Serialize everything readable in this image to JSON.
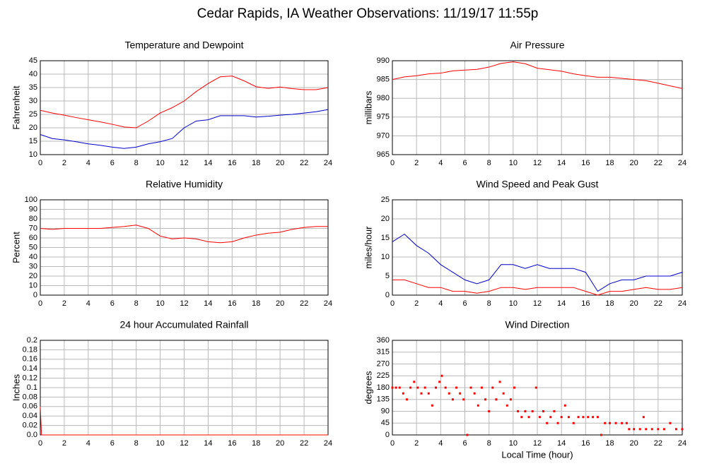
{
  "title": "Cedar Rapids, IA Weather Observations: 11/19/17 11:55p",
  "chart_data": [
    {
      "type": "line",
      "title": "Temperature and Dewpoint",
      "y_label": "Fahrenheit",
      "x": [
        0,
        1,
        2,
        3,
        4,
        5,
        6,
        7,
        8,
        9,
        10,
        11,
        12,
        13,
        14,
        15,
        16,
        17,
        18,
        19,
        20,
        21,
        22,
        23,
        24
      ],
      "series": [
        {
          "color": "#ff0000",
          "values": [
            26.5,
            25.5,
            24.7,
            23.8,
            23,
            22.2,
            21.3,
            20.3,
            20,
            22.5,
            25.5,
            27.5,
            30,
            33.5,
            36.5,
            39,
            39.3,
            37.5,
            35.3,
            34.7,
            35.2,
            34.6,
            34.2,
            34.2,
            35
          ]
        },
        {
          "color": "#0000cc",
          "values": [
            17.5,
            16,
            15.5,
            14.8,
            14,
            13.5,
            12.8,
            12.3,
            12.8,
            14,
            14.8,
            16,
            20,
            22.5,
            23,
            24.5,
            24.5,
            24.5,
            24,
            24.3,
            24.7,
            25,
            25.5,
            26,
            26.8
          ]
        }
      ],
      "xlim": [
        0,
        24
      ],
      "xticks": [
        0,
        2,
        4,
        6,
        8,
        10,
        12,
        14,
        16,
        18,
        20,
        22,
        24
      ],
      "ylim": [
        10,
        45
      ],
      "yticks": [
        10,
        15,
        20,
        25,
        30,
        35,
        40,
        45
      ],
      "grid": true
    },
    {
      "type": "line",
      "title": "Air Pressure",
      "y_label": "millibars",
      "x": [
        0,
        1,
        2,
        3,
        4,
        5,
        6,
        7,
        8,
        9,
        10,
        11,
        12,
        13,
        14,
        15,
        16,
        17,
        18,
        19,
        20,
        21,
        22,
        23,
        24
      ],
      "series": [
        {
          "color": "#ff0000",
          "values": [
            985,
            985.7,
            986,
            986.5,
            986.7,
            987.3,
            987.5,
            987.7,
            988.3,
            989.3,
            989.7,
            989.2,
            988,
            987.6,
            987.2,
            986.5,
            986,
            985.6,
            985.6,
            985.3,
            985,
            984.7,
            984,
            983.3,
            982.6
          ]
        }
      ],
      "xlim": [
        0,
        24
      ],
      "xticks": [
        0,
        2,
        4,
        6,
        8,
        10,
        12,
        14,
        16,
        18,
        20,
        22,
        24
      ],
      "ylim": [
        965,
        990
      ],
      "yticks": [
        965,
        970,
        975,
        980,
        985,
        990
      ],
      "grid": true
    },
    {
      "type": "line",
      "title": "Relative Humidity",
      "y_label": "Percent",
      "x": [
        0,
        1,
        2,
        3,
        4,
        5,
        6,
        7,
        8,
        9,
        10,
        11,
        12,
        13,
        14,
        15,
        16,
        17,
        18,
        19,
        20,
        21,
        22,
        23,
        24
      ],
      "series": [
        {
          "color": "#ff0000",
          "values": [
            70,
            69,
            70,
            70,
            70,
            70,
            71,
            72,
            73.5,
            70,
            62,
            59,
            60,
            59,
            56,
            55,
            56,
            60,
            63,
            65,
            66,
            69,
            71,
            72,
            72
          ]
        }
      ],
      "xlim": [
        0,
        24
      ],
      "xticks": [
        0,
        2,
        4,
        6,
        8,
        10,
        12,
        14,
        16,
        18,
        20,
        22,
        24
      ],
      "ylim": [
        0,
        100
      ],
      "yticks": [
        0,
        10,
        20,
        30,
        40,
        50,
        60,
        70,
        80,
        90,
        100
      ],
      "grid": true
    },
    {
      "type": "line",
      "title": "Wind Speed and Peak Gust",
      "y_label": "miles/hour",
      "x": [
        0,
        1,
        2,
        3,
        4,
        5,
        6,
        7,
        8,
        9,
        10,
        11,
        12,
        13,
        14,
        15,
        16,
        17,
        18,
        19,
        20,
        21,
        22,
        23,
        24
      ],
      "series": [
        {
          "color": "#0000cc",
          "values": [
            14,
            16,
            13,
            11,
            8,
            6,
            4,
            3,
            4,
            8,
            8,
            7,
            8,
            7,
            7,
            7,
            6,
            1,
            3,
            4,
            4,
            5,
            5,
            5,
            6
          ]
        },
        {
          "color": "#ff0000",
          "values": [
            4,
            4,
            3,
            2,
            2,
            1,
            1,
            0.5,
            1,
            2,
            2,
            1.5,
            2,
            2,
            2,
            2,
            1,
            0,
            1,
            1,
            1.5,
            2,
            1.5,
            1.5,
            2
          ]
        }
      ],
      "xlim": [
        0,
        24
      ],
      "xticks": [
        0,
        2,
        4,
        6,
        8,
        10,
        12,
        14,
        16,
        18,
        20,
        22,
        24
      ],
      "ylim": [
        0,
        25
      ],
      "yticks": [
        0,
        5,
        10,
        15,
        20,
        25
      ],
      "grid": true
    },
    {
      "type": "line",
      "title": "24 hour Accumulated Rainfall",
      "y_label": "Inches",
      "x": [
        0,
        0.1,
        24
      ],
      "series": [
        {
          "color": "#ff0000",
          "values": [
            0.06,
            0,
            0
          ]
        }
      ],
      "xlim": [
        0,
        24
      ],
      "xticks": [
        0,
        2,
        4,
        6,
        8,
        10,
        12,
        14,
        16,
        18,
        20,
        22,
        24
      ],
      "ylim": [
        0,
        0.2
      ],
      "yticks": [
        {
          "value": 0,
          "label": "0.0"
        },
        0.02,
        0.04,
        0.06,
        0.08,
        0.1,
        0.12,
        0.14,
        0.16,
        0.18,
        0.2
      ],
      "grid": true
    },
    {
      "type": "scatter",
      "title": "Wind Direction",
      "y_label": "degrees",
      "x_label": "Local Time (hour)",
      "x": [
        0,
        0.3,
        0.6,
        0.9,
        1.2,
        1.5,
        1.8,
        2.1,
        2.4,
        2.7,
        3,
        3.3,
        3.6,
        3.9,
        4.1,
        4.4,
        4.7,
        5,
        5.3,
        5.6,
        5.9,
        6.2,
        6.5,
        6.8,
        7.1,
        7.4,
        7.7,
        8,
        8.3,
        8.6,
        8.9,
        9.2,
        9.5,
        9.8,
        10.1,
        10.4,
        10.7,
        11,
        11.3,
        11.6,
        11.9,
        12.2,
        12.5,
        12.8,
        13.1,
        13.4,
        13.7,
        14,
        14.3,
        14.6,
        15,
        15.4,
        15.8,
        16.2,
        16.6,
        17,
        17.3,
        17.6,
        18,
        18.5,
        19,
        19.4,
        19.6,
        20,
        20.5,
        20.8,
        21,
        21.5,
        22,
        22.5,
        23,
        23.5,
        24
      ],
      "series": [
        {
          "color": "#ff0000",
          "values": [
            180,
            180,
            180,
            158,
            135,
            180,
            202,
            180,
            158,
            180,
            158,
            112,
            180,
            202,
            225,
            180,
            158,
            135,
            180,
            158,
            135,
            0,
            180,
            158,
            112,
            180,
            135,
            90,
            180,
            135,
            202,
            158,
            112,
            135,
            180,
            90,
            68,
            90,
            68,
            90,
            180,
            68,
            90,
            45,
            68,
            90,
            45,
            68,
            112,
            68,
            45,
            68,
            68,
            68,
            68,
            68,
            0,
            45,
            45,
            45,
            45,
            45,
            22,
            22,
            22,
            68,
            22,
            22,
            22,
            22,
            45,
            22,
            22
          ]
        }
      ],
      "xlim": [
        0,
        24
      ],
      "xticks": [
        0,
        2,
        4,
        6,
        8,
        10,
        12,
        14,
        16,
        18,
        20,
        22,
        24
      ],
      "ylim": [
        0,
        360
      ],
      "yticks": [
        0,
        45,
        90,
        135,
        180,
        225,
        270,
        315,
        360
      ],
      "grid": true
    }
  ]
}
